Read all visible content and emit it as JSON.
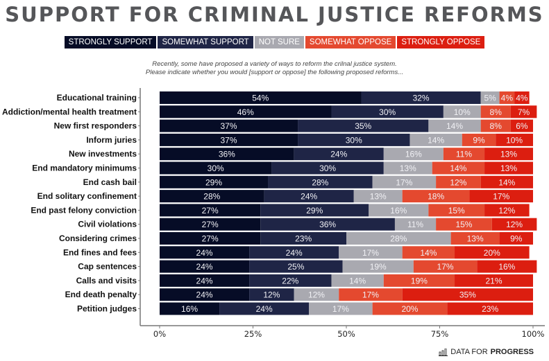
{
  "chart_data": {
    "type": "bar",
    "orientation": "horizontal",
    "stacked": true,
    "title": "SUPPORT FOR CRIMINAL JUSTICE REFORMS",
    "subtitle_lines": [
      "Recently, some have proposed a variety of ways to reform the crilnal justice system.",
      "Please indicate whether you would [support or oppose] the following proposed reforms..."
    ],
    "xlabel": "",
    "ylabel": "",
    "xlim": [
      0,
      100
    ],
    "x_ticks": [
      "0%",
      "25%",
      "50%",
      "75%",
      "100%"
    ],
    "x_tick_values": [
      0,
      25,
      50,
      75,
      100
    ],
    "legend_placement": "top",
    "categories": [
      "Educational training",
      "Addiction/mental health treatment",
      "New first responders",
      "Inform juries",
      "New investments",
      "End mandatory minimums",
      "End cash bail",
      "End solitary confinement",
      "End past felony conviction",
      "Civil violations",
      "Considering crimes",
      "End fines and fees",
      "Cap sentences",
      "Calls and visits",
      "End death penalty",
      "Petition judges"
    ],
    "series": [
      {
        "name": "STRONGLY SUPPORT",
        "color": "#060c26",
        "values": [
          54,
          46,
          37,
          37,
          36,
          30,
          29,
          28,
          27,
          27,
          27,
          24,
          24,
          24,
          24,
          16
        ]
      },
      {
        "name": "SOMEWHAT SUPPORT",
        "color": "#1f2546",
        "values": [
          32,
          30,
          35,
          30,
          24,
          30,
          28,
          24,
          29,
          36,
          23,
          24,
          25,
          22,
          12,
          24
        ]
      },
      {
        "name": "NOT SURE",
        "color": "#a9a9b0",
        "values": [
          5,
          10,
          14,
          14,
          16,
          13,
          17,
          13,
          16,
          11,
          28,
          17,
          19,
          14,
          12,
          17
        ]
      },
      {
        "name": "SOMEWHAT OPPOSE",
        "color": "#e4492f",
        "values": [
          4,
          8,
          8,
          9,
          11,
          14,
          12,
          18,
          15,
          15,
          13,
          14,
          17,
          19,
          17,
          20
        ]
      },
      {
        "name": "STRONGLY OPPOSE",
        "color": "#dc1e10",
        "values": [
          4,
          7,
          6,
          10,
          13,
          13,
          14,
          17,
          12,
          12,
          9,
          20,
          16,
          21,
          35,
          23
        ]
      }
    ]
  },
  "footer": {
    "brand_light": "DATA FOR",
    "brand_bold": "PROGRESS",
    "icon": "bar-chart-icon"
  }
}
